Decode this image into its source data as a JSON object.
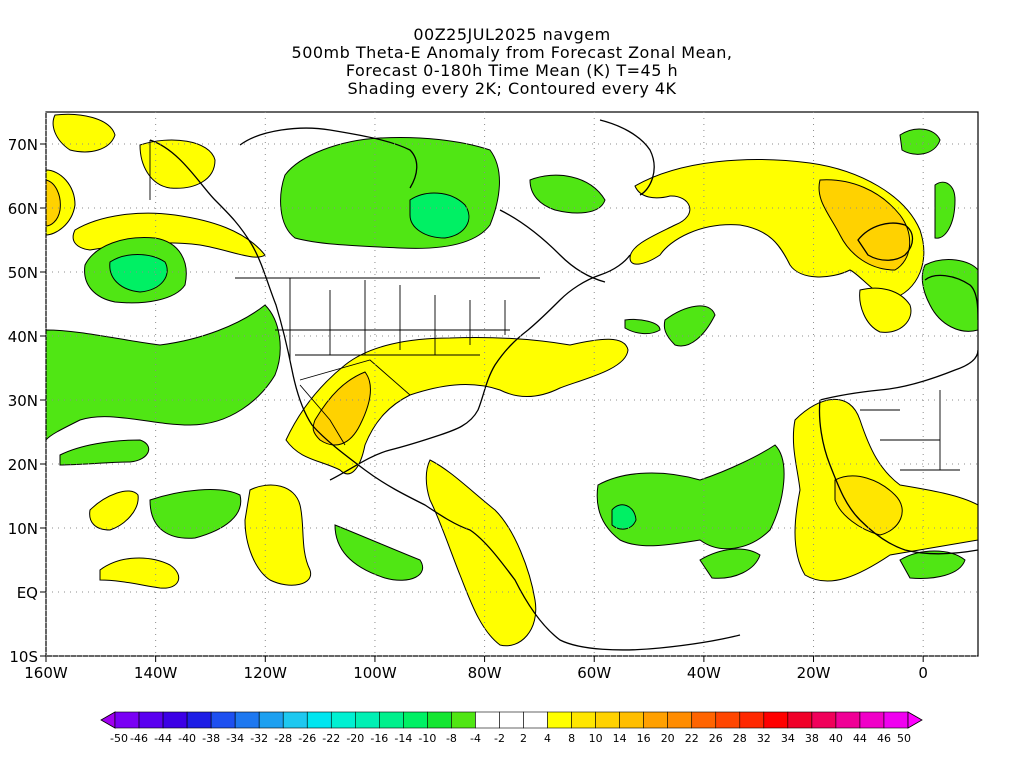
{
  "title_lines": [
    "00Z25JUL2025 navgem",
    "500mb Theta-E Anomaly from Forecast Zonal Mean,",
    "Forecast 0-180h Time Mean (K) T=45 h",
    "Shading every 2K; Contoured every 4K"
  ],
  "map": {
    "lon_range": [
      -160,
      10
    ],
    "lat_range": [
      -10,
      75
    ],
    "gridline_style": "dotted",
    "lon_ticks": [
      {
        "value": -160,
        "label": "160W"
      },
      {
        "value": -140,
        "label": "140W"
      },
      {
        "value": -120,
        "label": "120W"
      },
      {
        "value": -100,
        "label": "100W"
      },
      {
        "value": -80,
        "label": "80W"
      },
      {
        "value": -60,
        "label": "60W"
      },
      {
        "value": -40,
        "label": "40W"
      },
      {
        "value": -20,
        "label": "20W"
      },
      {
        "value": 0,
        "label": "0"
      }
    ],
    "lat_ticks": [
      {
        "value": 70,
        "label": "70N"
      },
      {
        "value": 60,
        "label": "60N"
      },
      {
        "value": 50,
        "label": "50N"
      },
      {
        "value": 40,
        "label": "40N"
      },
      {
        "value": 30,
        "label": "30N"
      },
      {
        "value": 20,
        "label": "20N"
      },
      {
        "value": 10,
        "label": "10N"
      },
      {
        "value": 0,
        "label": "EQ"
      },
      {
        "value": -10,
        "label": "10S"
      }
    ]
  },
  "colorbar": {
    "labels": [
      "-50",
      "-46",
      "-44",
      "-40",
      "-38",
      "-34",
      "-32",
      "-28",
      "-26",
      "-22",
      "-20",
      "-16",
      "-14",
      "-10",
      "-8",
      "-4",
      "-2",
      "2",
      "4",
      "8",
      "10",
      "14",
      "16",
      "20",
      "22",
      "26",
      "28",
      "32",
      "34",
      "38",
      "40",
      "44",
      "46",
      "50"
    ],
    "colors": [
      "#a000f0",
      "#7a00f5",
      "#5a00f0",
      "#3c00e6",
      "#1e1ee6",
      "#1e50f0",
      "#1e78f0",
      "#1ea0f0",
      "#1ec8f0",
      "#00e6f0",
      "#00f0d2",
      "#00f0b4",
      "#00f08c",
      "#00f064",
      "#14e632",
      "#50e614",
      "#ffffff",
      "#ffffff",
      "#ffffff",
      "#ffff00",
      "#ffe600",
      "#ffd200",
      "#ffbe00",
      "#ffa000",
      "#ff8c00",
      "#ff6400",
      "#ff4600",
      "#ff2800",
      "#ff0000",
      "#f00028",
      "#f0005a",
      "#f00096",
      "#f000c8",
      "#f000f0",
      "#ff00ff"
    ]
  },
  "field_colors": {
    "warm_4_8": "#ffff00",
    "warm_8_10": "#ffe600",
    "warm_10_14": "#ffd200",
    "warm_14_16": "#ffbe00",
    "cool_m8_m4": "#50e614",
    "cool_m10_m8": "#14e632",
    "cool_m14_m10": "#00f064"
  }
}
